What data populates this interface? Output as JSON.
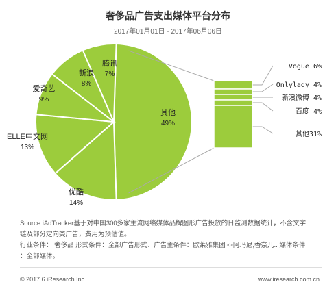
{
  "header": {
    "title": "奢侈品广告支出媒体平台分布",
    "date_range": "2017年01月01日 - 2017年06月06日"
  },
  "chart_data": {
    "type": "pie",
    "title": "奢侈品广告支出媒体平台分布",
    "subtitle": "2017年01月01日 - 2017年06月06日",
    "slices": [
      {
        "label": "其他",
        "value": 49,
        "display": "49%"
      },
      {
        "label": "优酷",
        "value": 14,
        "display": "14%"
      },
      {
        "label": "ELLE中文网",
        "value": 13,
        "display": "13%"
      },
      {
        "label": "爱奇艺",
        "value": 9,
        "display": "9%"
      },
      {
        "label": "新浪",
        "value": 8,
        "display": "8%"
      },
      {
        "label": "腾讯",
        "value": 7,
        "display": "7%"
      }
    ],
    "breakdown": {
      "of": "其他",
      "type": "stacked-bar",
      "segments": [
        {
          "label": "Vogue",
          "value": 6,
          "display": "Vogue 6%"
        },
        {
          "label": "Onlylady",
          "value": 4,
          "display": "Onlylady 4%"
        },
        {
          "label": "新浪微博",
          "value": 4,
          "display": "新浪微博 4%"
        },
        {
          "label": "百度",
          "value": 4,
          "display": "百度 4%"
        },
        {
          "label": "其他",
          "value": 31,
          "display": "其他31%"
        }
      ]
    }
  },
  "colors": {
    "fill": "#9ccc3c",
    "stroke": "#ffffff",
    "connector": "#aaaaaa"
  },
  "notes": {
    "line1": "Source:iAdTracker基于对中国300多家主流网络媒体品牌图形广告投放的日监测数据统计，不含文字",
    "line2": "链及部分定向类广告，费用为预估值。",
    "line3": "行业条件：  奢侈品      形式条件：全部广告形式、广告主条件：欧莱雅集团>>阿玛尼,香奈儿..  媒体条件",
    "line4": "：全部媒体。"
  },
  "footer": {
    "copyright": "© 2017.6 iResearch Inc.",
    "url": "www.iresearch.com.cn"
  }
}
